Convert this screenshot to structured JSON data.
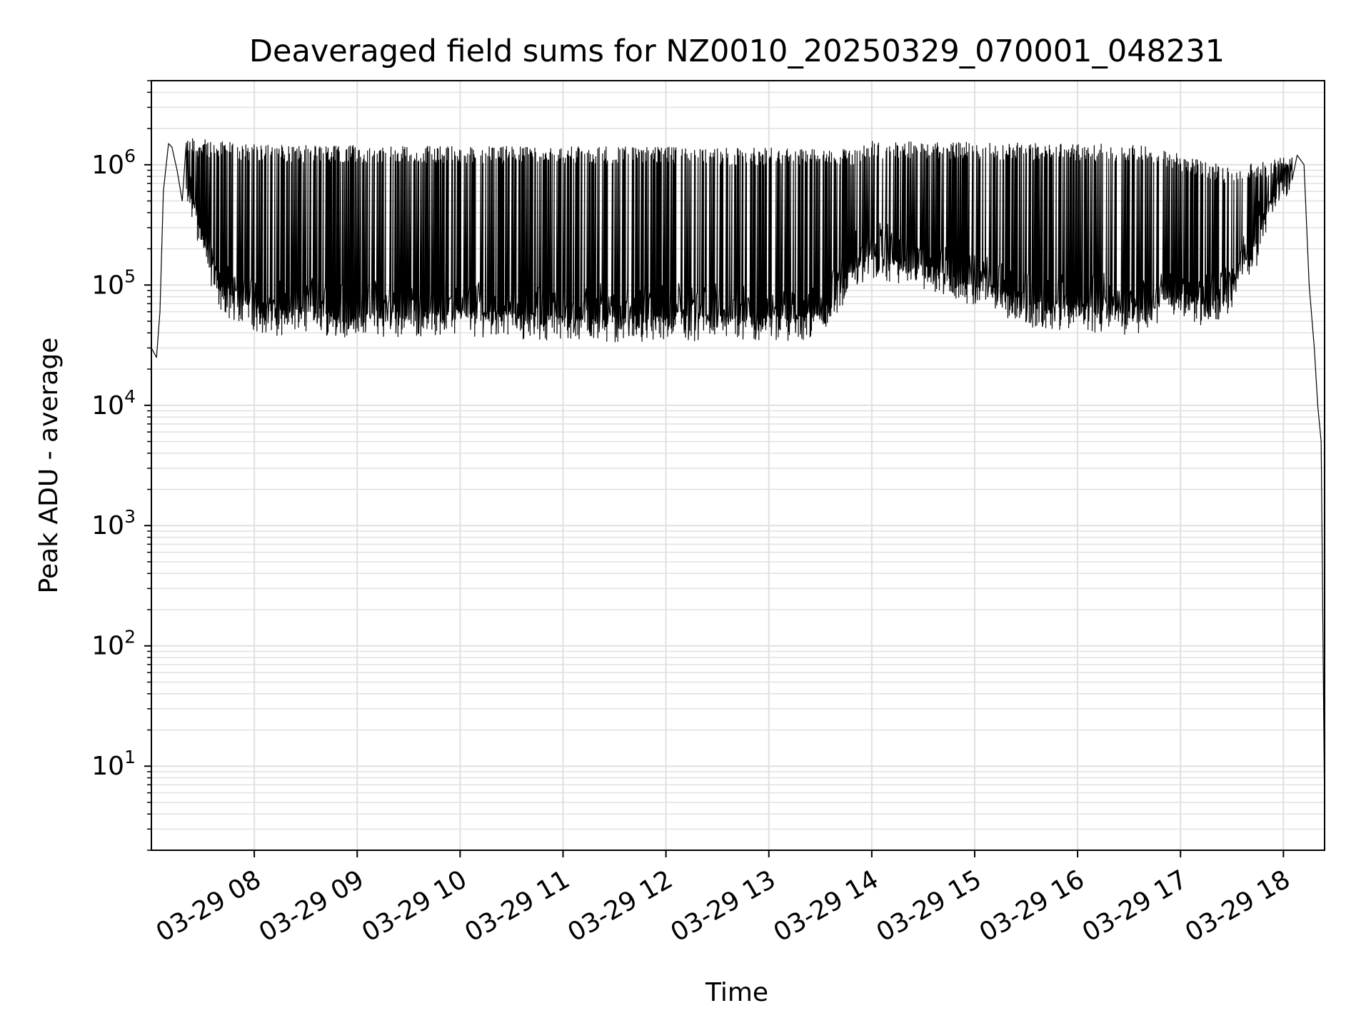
{
  "chart_data": {
    "type": "line",
    "title": "Deaveraged field sums for NZ0010_20250329_070001_048231",
    "xlabel": "Time",
    "ylabel": "Peak ADU - average",
    "yscale": "log",
    "ylim": [
      2,
      5000000
    ],
    "xlim": [
      "2025-03-29 07:00",
      "2025-03-29 18:24"
    ],
    "x_tick_labels": [
      "03-29 08",
      "03-29 09",
      "03-29 10",
      "03-29 11",
      "03-29 12",
      "03-29 13",
      "03-29 14",
      "03-29 15",
      "03-29 16",
      "03-29 17",
      "03-29 18"
    ],
    "x_ticks": [
      "2025-03-29 08:00",
      "2025-03-29 09:00",
      "2025-03-29 10:00",
      "2025-03-29 11:00",
      "2025-03-29 12:00",
      "2025-03-29 13:00",
      "2025-03-29 14:00",
      "2025-03-29 15:00",
      "2025-03-29 16:00",
      "2025-03-29 17:00",
      "2025-03-29 18:00"
    ],
    "y_ticks": [
      {
        "base": "10",
        "exp": "1",
        "value": 10
      },
      {
        "base": "10",
        "exp": "2",
        "value": 100
      },
      {
        "base": "10",
        "exp": "3",
        "value": 1000
      },
      {
        "base": "10",
        "exp": "4",
        "value": 10000
      },
      {
        "base": "10",
        "exp": "5",
        "value": 100000
      },
      {
        "base": "10",
        "exp": "6",
        "value": 1000000
      }
    ],
    "grid": true,
    "line_color": "#000000",
    "grid_color": "#e0e0e0",
    "series": [
      {
        "x": [
          "2025-03-29 07:00",
          "2025-03-29 07:03",
          "2025-03-29 07:05",
          "2025-03-29 07:07",
          "2025-03-29 07:10",
          "2025-03-29 07:12",
          "2025-03-29 07:15",
          "2025-03-29 07:18",
          "2025-03-29 07:20",
          "2025-03-29 07:25",
          "2025-03-29 07:30",
          "2025-03-29 07:35",
          "2025-03-29 07:40",
          "2025-03-29 07:45",
          "2025-03-29 07:50",
          "2025-03-29 07:55",
          "2025-03-29 08:00",
          "2025-03-29 08:15",
          "2025-03-29 08:30",
          "2025-03-29 08:45",
          "2025-03-29 09:00",
          "2025-03-29 09:30",
          "2025-03-29 10:00",
          "2025-03-29 10:30",
          "2025-03-29 11:00",
          "2025-03-29 11:30",
          "2025-03-29 12:00",
          "2025-03-29 12:30",
          "2025-03-29 13:00",
          "2025-03-29 13:30",
          "2025-03-29 13:50",
          "2025-03-29 14:00",
          "2025-03-29 14:30",
          "2025-03-29 15:00",
          "2025-03-29 15:30",
          "2025-03-29 16:00",
          "2025-03-29 16:30",
          "2025-03-29 17:00",
          "2025-03-29 17:15",
          "2025-03-29 17:30",
          "2025-03-29 17:45",
          "2025-03-29 17:55",
          "2025-03-29 18:00",
          "2025-03-29 18:05",
          "2025-03-29 18:08",
          "2025-03-29 18:12",
          "2025-03-29 18:15",
          "2025-03-29 18:18",
          "2025-03-29 18:20",
          "2025-03-29 18:22",
          "2025-03-29 18:23",
          "2025-03-29 18:24"
        ],
        "values": [
          30000,
          25000,
          60000,
          600000,
          1500000,
          1400000,
          900000,
          500000,
          600000,
          400000,
          200000,
          130000,
          80000,
          70000,
          60000,
          65000,
          55000,
          50000,
          55000,
          50000,
          48000,
          50000,
          50000,
          48000,
          45000,
          45000,
          45000,
          45000,
          45000,
          47000,
          120000,
          150000,
          120000,
          90000,
          60000,
          55000,
          50000,
          70000,
          60000,
          80000,
          200000,
          500000,
          700000,
          800000,
          1200000,
          1000000,
          100000,
          30000,
          10000,
          5000,
          150,
          4
        ]
      }
    ],
    "envelope_upper": {
      "x": [
        "2025-03-29 07:20",
        "2025-03-29 08:00",
        "2025-03-29 13:50",
        "2025-03-29 14:00",
        "2025-03-29 16:40",
        "2025-03-29 17:30",
        "2025-03-29 18:00"
      ],
      "values": [
        1600000,
        1400000,
        1300000,
        1500000,
        1400000,
        900000,
        1100000
      ]
    }
  }
}
